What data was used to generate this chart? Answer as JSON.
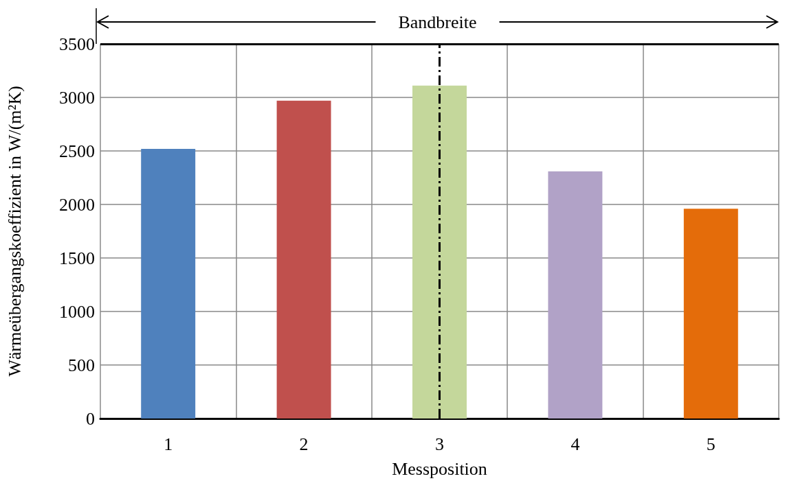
{
  "chart_data": {
    "type": "bar",
    "xlabel": "Messposition",
    "ylabel": "Wärmeübergangskoeffizient in W/(m²K)",
    "categories": [
      "1",
      "2",
      "3",
      "4",
      "5"
    ],
    "values": [
      2520,
      2970,
      3110,
      2310,
      1960
    ],
    "colors": [
      "#4f81bd",
      "#c0504d",
      "#c4d79b",
      "#b1a2c7",
      "#e46c0a"
    ],
    "ylim": [
      0,
      3500
    ],
    "yticks": [
      0,
      500,
      1000,
      1500,
      2000,
      2500,
      3000,
      3500
    ],
    "grid": true,
    "ref_lines": [
      {
        "axis": "x",
        "value": "3",
        "color": "#000000",
        "line_style": "dashed"
      }
    ],
    "annotations": [
      "Bandbreite"
    ]
  }
}
